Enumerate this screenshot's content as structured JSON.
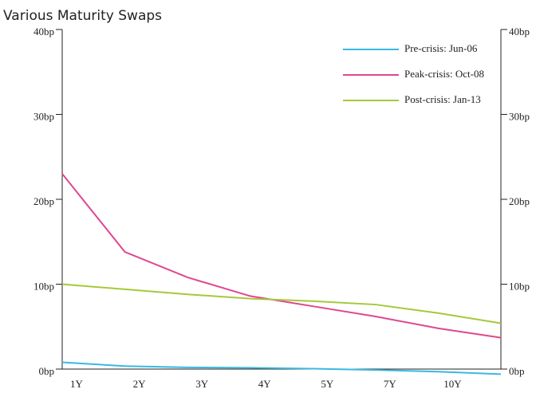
{
  "chart_data": {
    "type": "line",
    "title": "Various Maturity Swaps",
    "categories": [
      "1Y",
      "2Y",
      "3Y",
      "4Y",
      "5Y",
      "7Y",
      "10Y",
      null
    ],
    "series": [
      {
        "name": "Pre-crisis: Jun-06",
        "color": "#3bb8e0",
        "values": [
          0.8,
          0.35,
          0.2,
          0.15,
          0.05,
          -0.1,
          -0.3,
          -0.6
        ]
      },
      {
        "name": "Peak-crisis: Oct-08",
        "color": "#e0478f",
        "values": [
          23,
          13.8,
          10.8,
          8.6,
          7.4,
          6.2,
          4.8,
          3.7
        ]
      },
      {
        "name": "Post-crisis: Jan-13",
        "color": "#a7c83a",
        "values": [
          10,
          9.4,
          8.8,
          8.3,
          8.0,
          7.6,
          6.6,
          5.4
        ]
      }
    ],
    "ylim": [
      0,
      40
    ],
    "yticks": [
      {
        "value": 0,
        "label": "0bp"
      },
      {
        "value": 10,
        "label": "10bp"
      },
      {
        "value": 20,
        "label": "20bp"
      },
      {
        "value": 30,
        "label": "30bp"
      },
      {
        "value": 40,
        "label": "40bp"
      }
    ],
    "y2lim": [
      0,
      40
    ],
    "y2ticks": [
      {
        "value": 0,
        "label": "0bp"
      },
      {
        "value": 10,
        "label": "10bp"
      },
      {
        "value": 20,
        "label": "20bp"
      },
      {
        "value": 30,
        "label": "30bp"
      },
      {
        "value": 40,
        "label": "40bp"
      }
    ],
    "grid": false,
    "legend": "upper right"
  }
}
